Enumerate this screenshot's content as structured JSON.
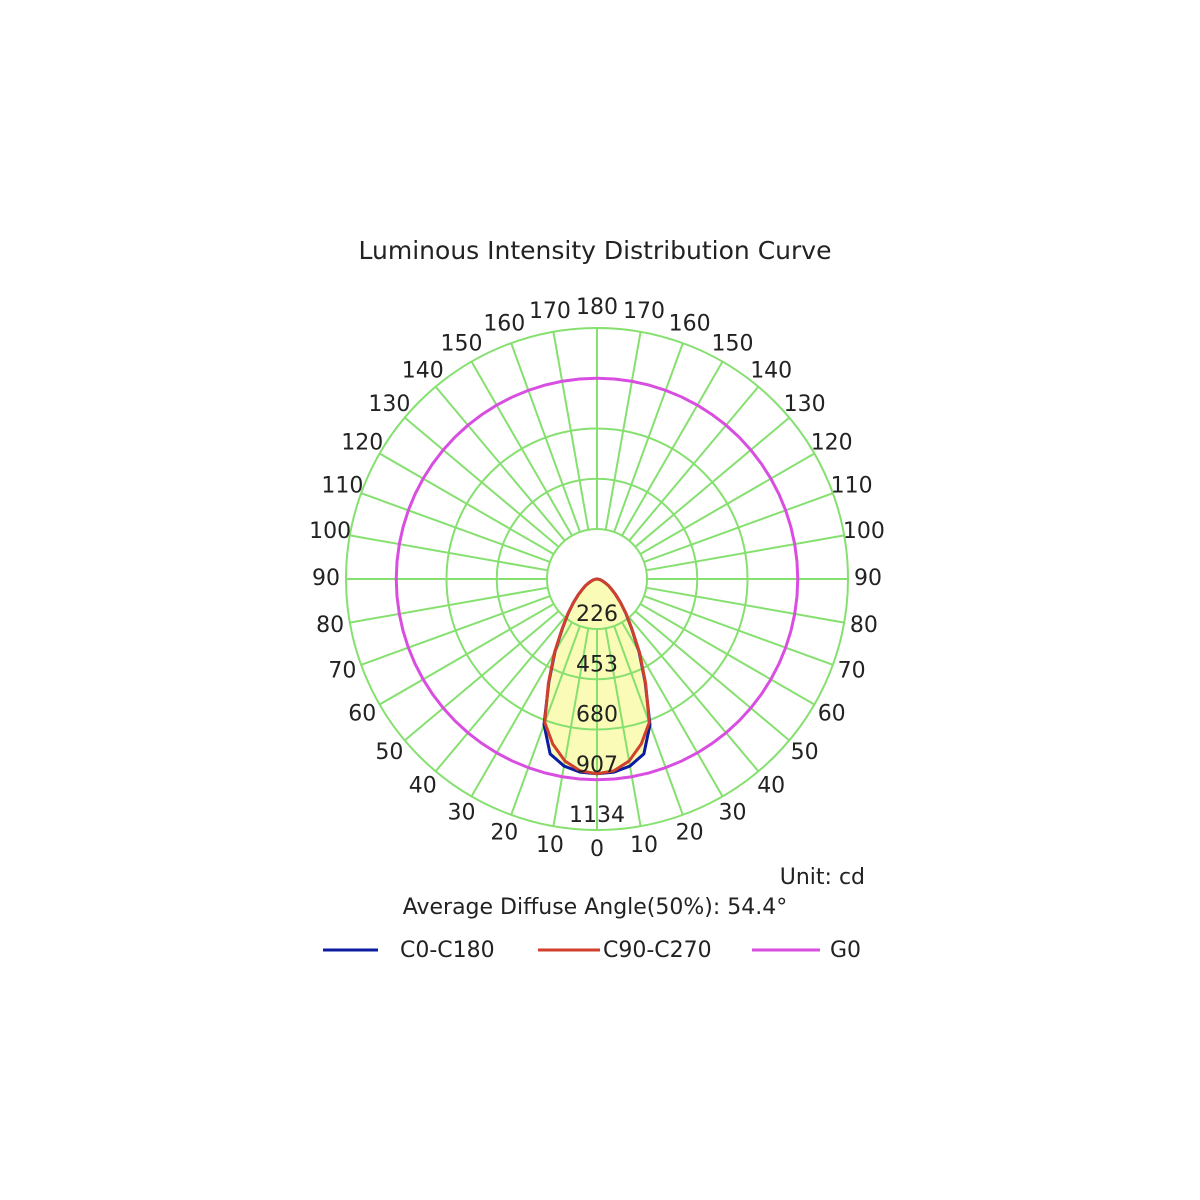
{
  "chart_data": {
    "type": "polar",
    "title": "Luminous Intensity Distribution Curve",
    "unit_label": "Unit: cd",
    "annotation": "Average Diffuse Angle(50%): 54.4°",
    "x": [
      0,
      5,
      10,
      15,
      20,
      25,
      30,
      35,
      40,
      45,
      50,
      55,
      60,
      65,
      70,
      75,
      80,
      85,
      90,
      95,
      100,
      105,
      110,
      115,
      120,
      125,
      130,
      135,
      140,
      145,
      150,
      155,
      160,
      165,
      170,
      175,
      180
    ],
    "xticks": [
      0,
      10,
      20,
      30,
      40,
      50,
      60,
      70,
      80,
      90,
      100,
      110,
      120,
      130,
      140,
      150,
      160,
      170,
      180
    ],
    "rlim": [
      0,
      1134
    ],
    "rticks": [
      226,
      453,
      680,
      907,
      1134
    ],
    "series": [
      {
        "name": "C0-C180",
        "color": "#0b1ca0",
        "fill": "#fbfbb8",
        "values": [
          880,
          876,
          858,
          818,
          700,
          515,
          380,
          272,
          203,
          150,
          110,
          80,
          60,
          40,
          28,
          18,
          10,
          4,
          0,
          0,
          0,
          0,
          0,
          0,
          0,
          0,
          0,
          0,
          0,
          0,
          0,
          0,
          0,
          0,
          0,
          0,
          0
        ]
      },
      {
        "name": "C90-C270",
        "color": "#d0402c",
        "fill": "#fbfbb8",
        "values": [
          880,
          870,
          835,
          772,
          690,
          520,
          385,
          275,
          205,
          150,
          110,
          80,
          60,
          40,
          28,
          18,
          10,
          4,
          0,
          0,
          0,
          0,
          0,
          0,
          0,
          0,
          0,
          0,
          0,
          0,
          0,
          0,
          0,
          0,
          0,
          0,
          0
        ]
      },
      {
        "name": "G0",
        "color": "#d84ee0",
        "values": [
          907,
          907,
          907,
          907,
          907,
          907,
          907,
          907,
          907,
          907,
          907,
          907,
          907,
          907,
          907,
          907,
          907,
          907,
          907,
          907,
          907,
          907,
          907,
          907,
          907,
          907,
          907,
          907,
          907,
          907,
          907,
          907,
          907,
          907,
          907,
          907,
          907
        ]
      }
    ]
  }
}
